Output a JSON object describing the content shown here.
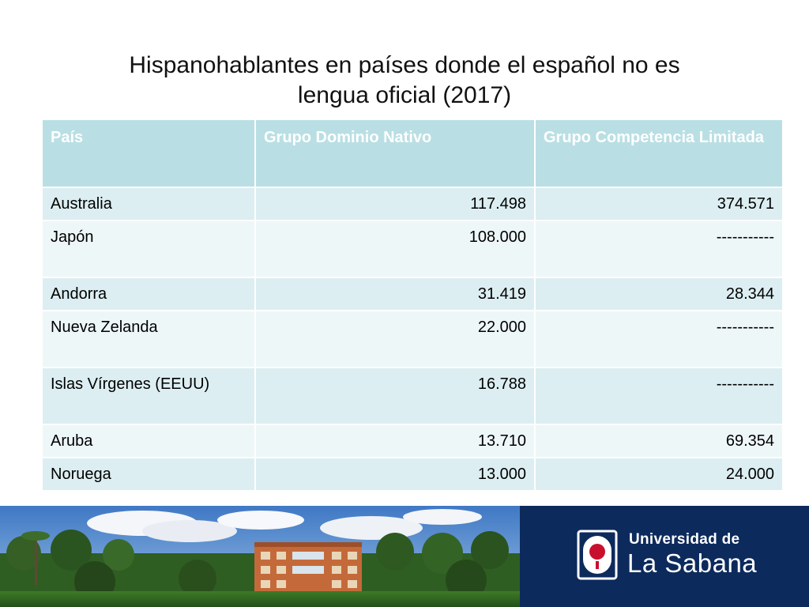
{
  "slide": {
    "title_line1": "Hispanohablantes en países donde el español no es",
    "title_line2": "lengua oficial (2017)"
  },
  "table": {
    "headers": [
      "País",
      "Grupo Dominio Nativo",
      "Grupo Competencia Limitada"
    ],
    "rows": [
      {
        "pais": "Australia",
        "nativo": "117.498",
        "limitada": "374.571"
      },
      {
        "pais": "Japón",
        "nativo": "108.000",
        "limitada": "-----------"
      },
      {
        "pais": "Andorra",
        "nativo": "31.419",
        "limitada": "28.344"
      },
      {
        "pais": "Nueva Zelanda",
        "nativo": "22.000",
        "limitada": "-----------"
      },
      {
        "pais": "Islas Vírgenes (EEUU)",
        "nativo": "16.788",
        "limitada": "-----------"
      },
      {
        "pais": "Aruba",
        "nativo": "13.710",
        "limitada": "69.354"
      },
      {
        "pais": "Noruega",
        "nativo": "13.000",
        "limitada": "24.000"
      }
    ]
  },
  "footer": {
    "university_line1": "Universidad de",
    "university_line2": "La Sabana",
    "photo_icon": "campus-photo",
    "crest_icon": "university-crest-icon"
  },
  "colors": {
    "header_bg": "#b9dfe4",
    "row_odd": "#dceef1",
    "row_even": "#eef7f8",
    "logo_panel": "#0d2a5c"
  }
}
